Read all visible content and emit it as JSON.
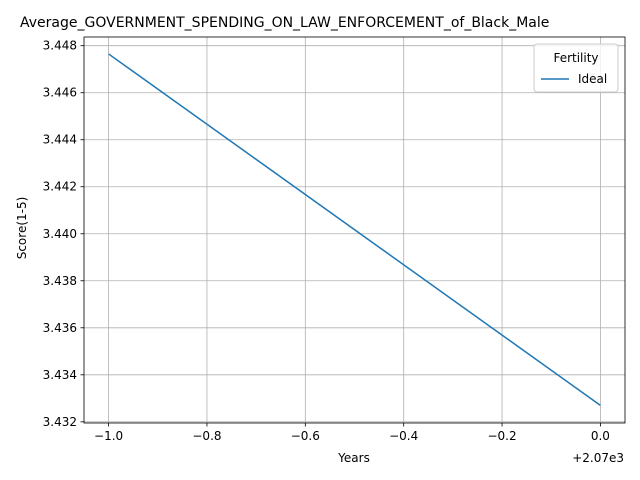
{
  "chart_data": {
    "type": "line",
    "title": "Average_GOVERNMENT_SPENDING_ON_LAW_ENFORCEMENT_of_Black_Male",
    "xlabel": "Years",
    "ylabel": "Score(1-5)",
    "x_offset_label": "+2.07e3",
    "xlim": [
      -1.05,
      0.05
    ],
    "ylim": [
      3.43195,
      3.44837
    ],
    "xticks": [
      -1.0,
      -0.8,
      -0.6,
      -0.4,
      -0.2,
      0.0
    ],
    "xtick_labels": [
      "−1.0",
      "−0.8",
      "−0.6",
      "−0.4",
      "−0.2",
      "0.0"
    ],
    "yticks": [
      3.432,
      3.434,
      3.436,
      3.438,
      3.44,
      3.442,
      3.444,
      3.446,
      3.448
    ],
    "ytick_labels": [
      "3.432",
      "3.434",
      "3.436",
      "3.438",
      "3.440",
      "3.442",
      "3.444",
      "3.446",
      "3.448"
    ],
    "grid": true,
    "legend": {
      "title": "Fertility",
      "placement": "top-right"
    },
    "series": [
      {
        "name": "Ideal",
        "color": "#1f77b4",
        "x": [
          -1.0,
          0.0
        ],
        "y": [
          3.44765,
          3.4327
        ]
      }
    ]
  }
}
